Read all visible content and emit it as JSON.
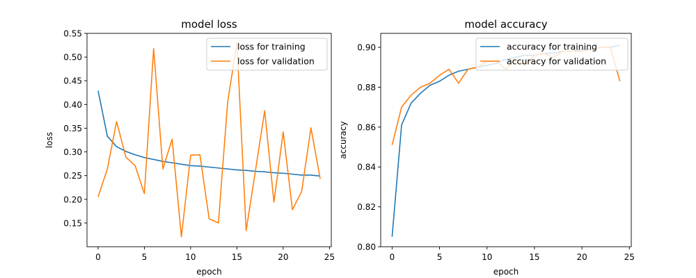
{
  "colors": {
    "training": "#1f77b4",
    "validation": "#ff7f0e",
    "axis": "#000000",
    "legend_border": "#cccccc"
  },
  "chart_data": [
    {
      "type": "line",
      "title": "model loss",
      "xlabel": "epoch",
      "ylabel": "loss",
      "xlim": [
        -1.2,
        25.2
      ],
      "ylim": [
        0.1,
        0.55
      ],
      "xticks": [
        0,
        5,
        10,
        15,
        20,
        25
      ],
      "yticks": [
        0.15,
        0.2,
        0.25,
        0.3,
        0.35,
        0.4,
        0.45,
        0.5,
        0.55
      ],
      "ytick_labels": [
        "0.15",
        "0.20",
        "0.25",
        "0.30",
        "0.35",
        "0.40",
        "0.45",
        "0.50",
        "0.55"
      ],
      "grid": false,
      "legend": "top-right",
      "x": [
        0,
        1,
        2,
        3,
        4,
        5,
        6,
        7,
        8,
        9,
        10,
        11,
        12,
        13,
        14,
        15,
        16,
        17,
        18,
        19,
        20,
        21,
        22,
        23,
        24
      ],
      "series": [
        {
          "name": "loss for training",
          "color_key": "training",
          "values": [
            0.429,
            0.333,
            0.311,
            0.301,
            0.294,
            0.288,
            0.284,
            0.28,
            0.277,
            0.274,
            0.271,
            0.27,
            0.268,
            0.266,
            0.264,
            0.262,
            0.261,
            0.259,
            0.258,
            0.256,
            0.255,
            0.253,
            0.251,
            0.251,
            0.249
          ]
        },
        {
          "name": "loss for validation",
          "color_key": "validation",
          "values": [
            0.205,
            0.264,
            0.364,
            0.289,
            0.271,
            0.212,
            0.518,
            0.264,
            0.327,
            0.121,
            0.293,
            0.294,
            0.159,
            0.15,
            0.405,
            0.53,
            0.134,
            0.26,
            0.387,
            0.194,
            0.342,
            0.178,
            0.217,
            0.351,
            0.243
          ]
        }
      ]
    },
    {
      "type": "line",
      "title": "model accuracy",
      "xlabel": "epoch",
      "ylabel": "accuracy",
      "xlim": [
        -1.2,
        25.2
      ],
      "ylim": [
        0.8,
        0.907
      ],
      "xticks": [
        0,
        5,
        10,
        15,
        20,
        25
      ],
      "yticks": [
        0.8,
        0.82,
        0.84,
        0.86,
        0.88,
        0.9
      ],
      "ytick_labels": [
        "0.80",
        "0.82",
        "0.84",
        "0.86",
        "0.88",
        "0.90"
      ],
      "grid": false,
      "legend": "top-right",
      "x": [
        0,
        1,
        2,
        3,
        4,
        5,
        6,
        7,
        8,
        9,
        10,
        11,
        12,
        13,
        14,
        15,
        16,
        17,
        18,
        19,
        20,
        21,
        22,
        23,
        24
      ],
      "series": [
        {
          "name": "accuracy for training",
          "color_key": "training",
          "values": [
            0.805,
            0.861,
            0.872,
            0.877,
            0.881,
            0.883,
            0.886,
            0.888,
            0.889,
            0.89,
            0.891,
            0.892,
            0.894,
            0.895,
            0.896,
            0.896,
            0.897,
            0.897,
            0.898,
            0.898,
            0.899,
            0.899,
            0.9,
            0.9,
            0.901
          ]
        },
        {
          "name": "accuracy for validation",
          "color_key": "validation",
          "values": [
            0.851,
            0.87,
            0.876,
            0.88,
            0.882,
            0.886,
            0.889,
            0.882,
            0.889,
            0.89,
            0.893,
            0.893,
            0.889,
            0.894,
            0.891,
            0.896,
            0.897,
            0.895,
            0.898,
            0.898,
            0.898,
            0.899,
            0.9,
            0.9,
            0.883
          ]
        }
      ]
    }
  ]
}
